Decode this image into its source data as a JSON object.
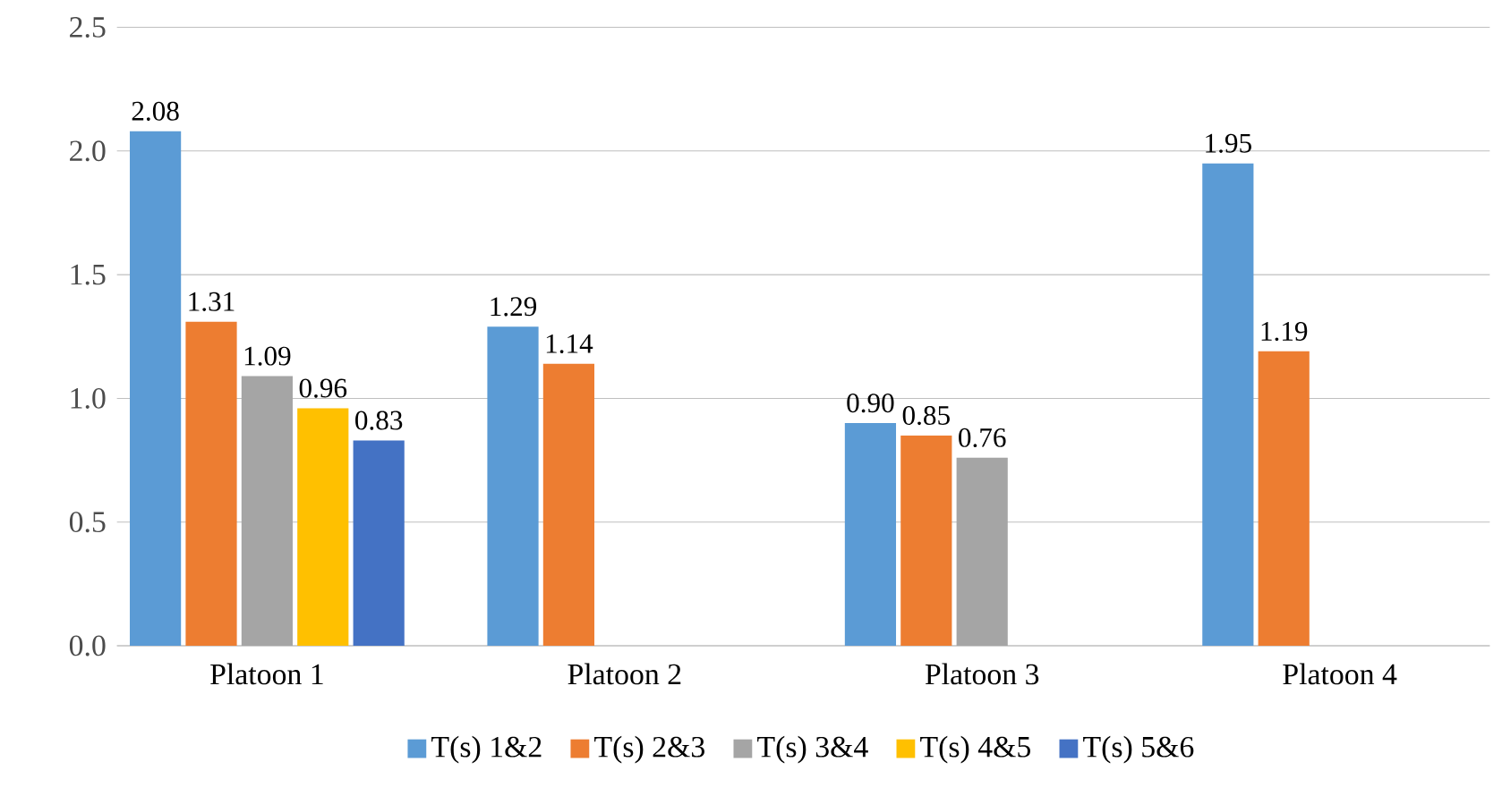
{
  "chart_data": {
    "type": "bar",
    "categories": [
      "Platoon 1",
      "Platoon 2",
      "Platoon 3",
      "Platoon 4"
    ],
    "series": [
      {
        "name": "T(s) 1&2",
        "color": "#5b9bd5",
        "values": [
          2.08,
          1.29,
          0.9,
          1.95
        ],
        "value_labels": [
          "2.08",
          "1.29",
          "0.90",
          "1.95"
        ]
      },
      {
        "name": "T(s) 2&3",
        "color": "#ed7d31",
        "values": [
          1.31,
          1.14,
          0.85,
          1.19
        ],
        "value_labels": [
          "1.31",
          "1.14",
          "0.85",
          "1.19"
        ]
      },
      {
        "name": "T(s) 3&4",
        "color": "#a5a5a5",
        "values": [
          1.09,
          null,
          0.76,
          null
        ],
        "value_labels": [
          "1.09",
          null,
          "0.76",
          null
        ]
      },
      {
        "name": "T(s) 4&5",
        "color": "#ffc000",
        "values": [
          0.96,
          null,
          null,
          null
        ],
        "value_labels": [
          "0.96",
          null,
          null,
          null
        ]
      },
      {
        "name": "T(s) 5&6",
        "color": "#4472c4",
        "values": [
          0.83,
          null,
          null,
          null
        ],
        "value_labels": [
          "0.83",
          null,
          null,
          null
        ]
      }
    ],
    "ylim": [
      0,
      2.5
    ],
    "yticks": [
      {
        "value": 0,
        "label": "0.0"
      },
      {
        "value": 0.5,
        "label": "0.5"
      },
      {
        "value": 1,
        "label": "1.0"
      },
      {
        "value": 1.5,
        "label": "1.5"
      },
      {
        "value": 2,
        "label": "2.0"
      },
      {
        "value": 2.5,
        "label": "2.5"
      }
    ],
    "grid": "y",
    "legend": "bottom"
  }
}
